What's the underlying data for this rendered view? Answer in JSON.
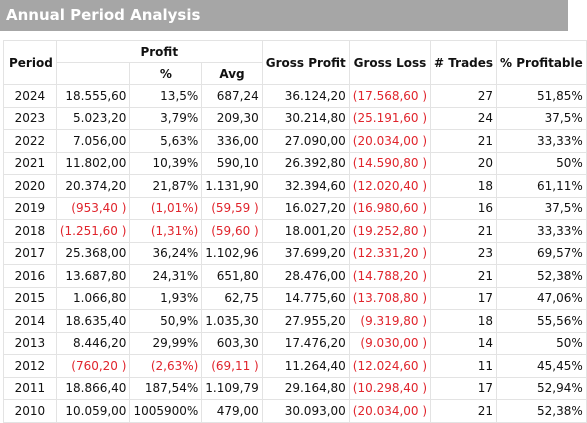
{
  "title": "Annual Period Analysis",
  "headers": {
    "period": "Period",
    "profit": "Profit",
    "pct": "%",
    "avg": "Avg",
    "gross_profit": "Gross Profit",
    "gross_loss": "Gross Loss",
    "trades": "# Trades",
    "pct_profitable": "% Profitable"
  },
  "colors": {
    "title_bar_bg": "#a6a6a6",
    "negative_text": "#e0242c"
  },
  "rows": [
    {
      "period": "2024",
      "profit": "18.555,60",
      "pct": "13,5%",
      "avg": "687,24",
      "gross_profit": "36.124,20",
      "gross_loss": "(17.568,60 )",
      "trades": "27",
      "pct_profitable": "51,85%",
      "neg": [
        false,
        false,
        false,
        true
      ]
    },
    {
      "period": "2023",
      "profit": "5.023,20",
      "pct": "3,79%",
      "avg": "209,30",
      "gross_profit": "30.214,80",
      "gross_loss": "(25.191,60 )",
      "trades": "24",
      "pct_profitable": "37,5%",
      "neg": [
        false,
        false,
        false,
        true
      ]
    },
    {
      "period": "2022",
      "profit": "7.056,00",
      "pct": "5,63%",
      "avg": "336,00",
      "gross_profit": "27.090,00",
      "gross_loss": "(20.034,00 )",
      "trades": "21",
      "pct_profitable": "33,33%",
      "neg": [
        false,
        false,
        false,
        true
      ]
    },
    {
      "period": "2021",
      "profit": "11.802,00",
      "pct": "10,39%",
      "avg": "590,10",
      "gross_profit": "26.392,80",
      "gross_loss": "(14.590,80 )",
      "trades": "20",
      "pct_profitable": "50%",
      "neg": [
        false,
        false,
        false,
        true
      ]
    },
    {
      "period": "2020",
      "profit": "20.374,20",
      "pct": "21,87%",
      "avg": "1.131,90",
      "gross_profit": "32.394,60",
      "gross_loss": "(12.020,40 )",
      "trades": "18",
      "pct_profitable": "61,11%",
      "neg": [
        false,
        false,
        false,
        true
      ]
    },
    {
      "period": "2019",
      "profit": "(953,40 )",
      "pct": "(1,01%)",
      "avg": "(59,59 )",
      "gross_profit": "16.027,20",
      "gross_loss": "(16.980,60 )",
      "trades": "16",
      "pct_profitable": "37,5%",
      "neg": [
        true,
        true,
        true,
        true
      ]
    },
    {
      "period": "2018",
      "profit": "(1.251,60 )",
      "pct": "(1,31%)",
      "avg": "(59,60 )",
      "gross_profit": "18.001,20",
      "gross_loss": "(19.252,80 )",
      "trades": "21",
      "pct_profitable": "33,33%",
      "neg": [
        true,
        true,
        true,
        true
      ]
    },
    {
      "period": "2017",
      "profit": "25.368,00",
      "pct": "36,24%",
      "avg": "1.102,96",
      "gross_profit": "37.699,20",
      "gross_loss": "(12.331,20 )",
      "trades": "23",
      "pct_profitable": "69,57%",
      "neg": [
        false,
        false,
        false,
        true
      ]
    },
    {
      "period": "2016",
      "profit": "13.687,80",
      "pct": "24,31%",
      "avg": "651,80",
      "gross_profit": "28.476,00",
      "gross_loss": "(14.788,20 )",
      "trades": "21",
      "pct_profitable": "52,38%",
      "neg": [
        false,
        false,
        false,
        true
      ]
    },
    {
      "period": "2015",
      "profit": "1.066,80",
      "pct": "1,93%",
      "avg": "62,75",
      "gross_profit": "14.775,60",
      "gross_loss": "(13.708,80 )",
      "trades": "17",
      "pct_profitable": "47,06%",
      "neg": [
        false,
        false,
        false,
        true
      ]
    },
    {
      "period": "2014",
      "profit": "18.635,40",
      "pct": "50,9%",
      "avg": "1.035,30",
      "gross_profit": "27.955,20",
      "gross_loss": "(9.319,80 )",
      "trades": "18",
      "pct_profitable": "55,56%",
      "neg": [
        false,
        false,
        false,
        true
      ]
    },
    {
      "period": "2013",
      "profit": "8.446,20",
      "pct": "29,99%",
      "avg": "603,30",
      "gross_profit": "17.476,20",
      "gross_loss": "(9.030,00 )",
      "trades": "14",
      "pct_profitable": "50%",
      "neg": [
        false,
        false,
        false,
        true
      ]
    },
    {
      "period": "2012",
      "profit": "(760,20 )",
      "pct": "(2,63%)",
      "avg": "(69,11 )",
      "gross_profit": "11.264,40",
      "gross_loss": "(12.024,60 )",
      "trades": "11",
      "pct_profitable": "45,45%",
      "neg": [
        true,
        true,
        true,
        true
      ]
    },
    {
      "period": "2011",
      "profit": "18.866,40",
      "pct": "187,54%",
      "avg": "1.109,79",
      "gross_profit": "29.164,80",
      "gross_loss": "(10.298,40 )",
      "trades": "17",
      "pct_profitable": "52,94%",
      "neg": [
        false,
        false,
        false,
        true
      ]
    },
    {
      "period": "2010",
      "profit": "10.059,00",
      "pct": "1005900%",
      "avg": "479,00",
      "gross_profit": "30.093,00",
      "gross_loss": "(20.034,00 )",
      "trades": "21",
      "pct_profitable": "52,38%",
      "neg": [
        false,
        false,
        false,
        true
      ]
    }
  ]
}
